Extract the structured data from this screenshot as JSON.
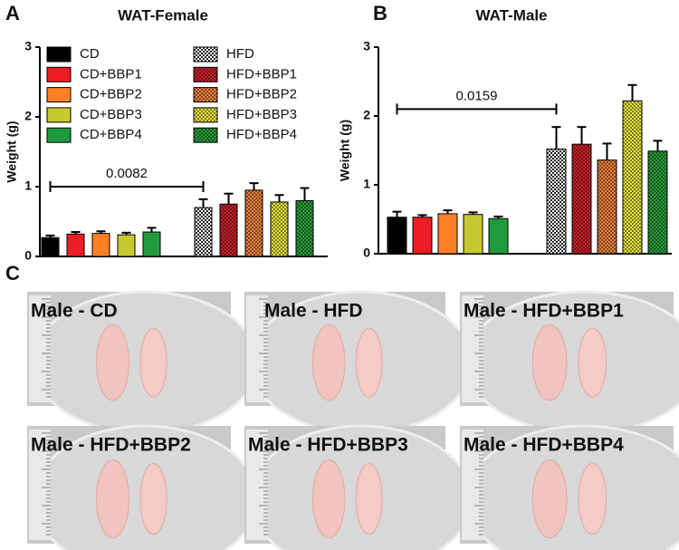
{
  "panels": [
    "A",
    "B",
    "C"
  ],
  "chart_data": [
    {
      "type": "bar",
      "title": "WAT-Female",
      "ylabel": "Weight (g)",
      "ylim": [
        0,
        3
      ],
      "yticks": [
        0,
        1,
        2,
        3
      ],
      "legend": true,
      "annotation": {
        "text": "0.0082",
        "y": 1.0
      },
      "series": [
        {
          "name": "CD",
          "color": "#000000",
          "hatch": false,
          "values": [
            0.27
          ],
          "errors": [
            0.03
          ]
        },
        {
          "name": "CD+BBP1",
          "color": "#ee1c24",
          "hatch": false,
          "values": [
            0.32
          ],
          "errors": [
            0.03
          ]
        },
        {
          "name": "CD+BBP2",
          "color": "#ff7f27",
          "hatch": false,
          "values": [
            0.33
          ],
          "errors": [
            0.03
          ]
        },
        {
          "name": "CD+BBP3",
          "color": "#c8c832",
          "hatch": false,
          "values": [
            0.31
          ],
          "errors": [
            0.03
          ]
        },
        {
          "name": "CD+BBP4",
          "color": "#1f9a3c",
          "hatch": false,
          "values": [
            0.35
          ],
          "errors": [
            0.06
          ]
        },
        {
          "name": "HFD",
          "color": "#ffffff",
          "hatch": true,
          "values": [
            0.7
          ],
          "errors": [
            0.12
          ]
        },
        {
          "name": "HFD+BBP1",
          "color": "#c8202a",
          "hatch": true,
          "values": [
            0.75
          ],
          "errors": [
            0.15
          ]
        },
        {
          "name": "HFD+BBP2",
          "color": "#e8803a",
          "hatch": true,
          "values": [
            0.95
          ],
          "errors": [
            0.1
          ]
        },
        {
          "name": "HFD+BBP3",
          "color": "#e4e040",
          "hatch": true,
          "values": [
            0.78
          ],
          "errors": [
            0.1
          ]
        },
        {
          "name": "HFD+BBP4",
          "color": "#2a9a3a",
          "hatch": true,
          "values": [
            0.8
          ],
          "errors": [
            0.18
          ]
        }
      ]
    },
    {
      "type": "bar",
      "title": "WAT-Male",
      "ylabel": "Weight (g)",
      "ylim": [
        0,
        3
      ],
      "yticks": [
        0,
        1,
        2,
        3
      ],
      "legend": false,
      "annotation": {
        "text": "0.0159",
        "y": 2.1
      },
      "series": [
        {
          "color": "#000000",
          "hatch": false,
          "values": [
            0.53
          ],
          "errors": [
            0.08
          ]
        },
        {
          "color": "#ee1c24",
          "hatch": false,
          "values": [
            0.53
          ],
          "errors": [
            0.03
          ]
        },
        {
          "color": "#ff7f27",
          "hatch": false,
          "values": [
            0.58
          ],
          "errors": [
            0.05
          ]
        },
        {
          "color": "#c8c832",
          "hatch": false,
          "values": [
            0.57
          ],
          "errors": [
            0.03
          ]
        },
        {
          "color": "#1f9a3c",
          "hatch": false,
          "values": [
            0.51
          ],
          "errors": [
            0.03
          ]
        },
        {
          "color": "#ffffff",
          "hatch": true,
          "values": [
            1.52
          ],
          "errors": [
            0.32
          ]
        },
        {
          "color": "#c8202a",
          "hatch": true,
          "values": [
            1.59
          ],
          "errors": [
            0.25
          ]
        },
        {
          "color": "#e8803a",
          "hatch": true,
          "values": [
            1.36
          ],
          "errors": [
            0.24
          ]
        },
        {
          "color": "#e4e040",
          "hatch": true,
          "values": [
            2.22
          ],
          "errors": [
            0.23
          ]
        },
        {
          "color": "#2a9a3a",
          "hatch": true,
          "values": [
            1.49
          ],
          "errors": [
            0.15
          ]
        }
      ]
    }
  ],
  "photos": {
    "labels": [
      "Male - CD",
      "Male - HFD",
      "Male - HFD+BBP1",
      "Male - HFD+BBP2",
      "Male - HFD+BBP3",
      "Male - HFD+BBP4"
    ]
  }
}
